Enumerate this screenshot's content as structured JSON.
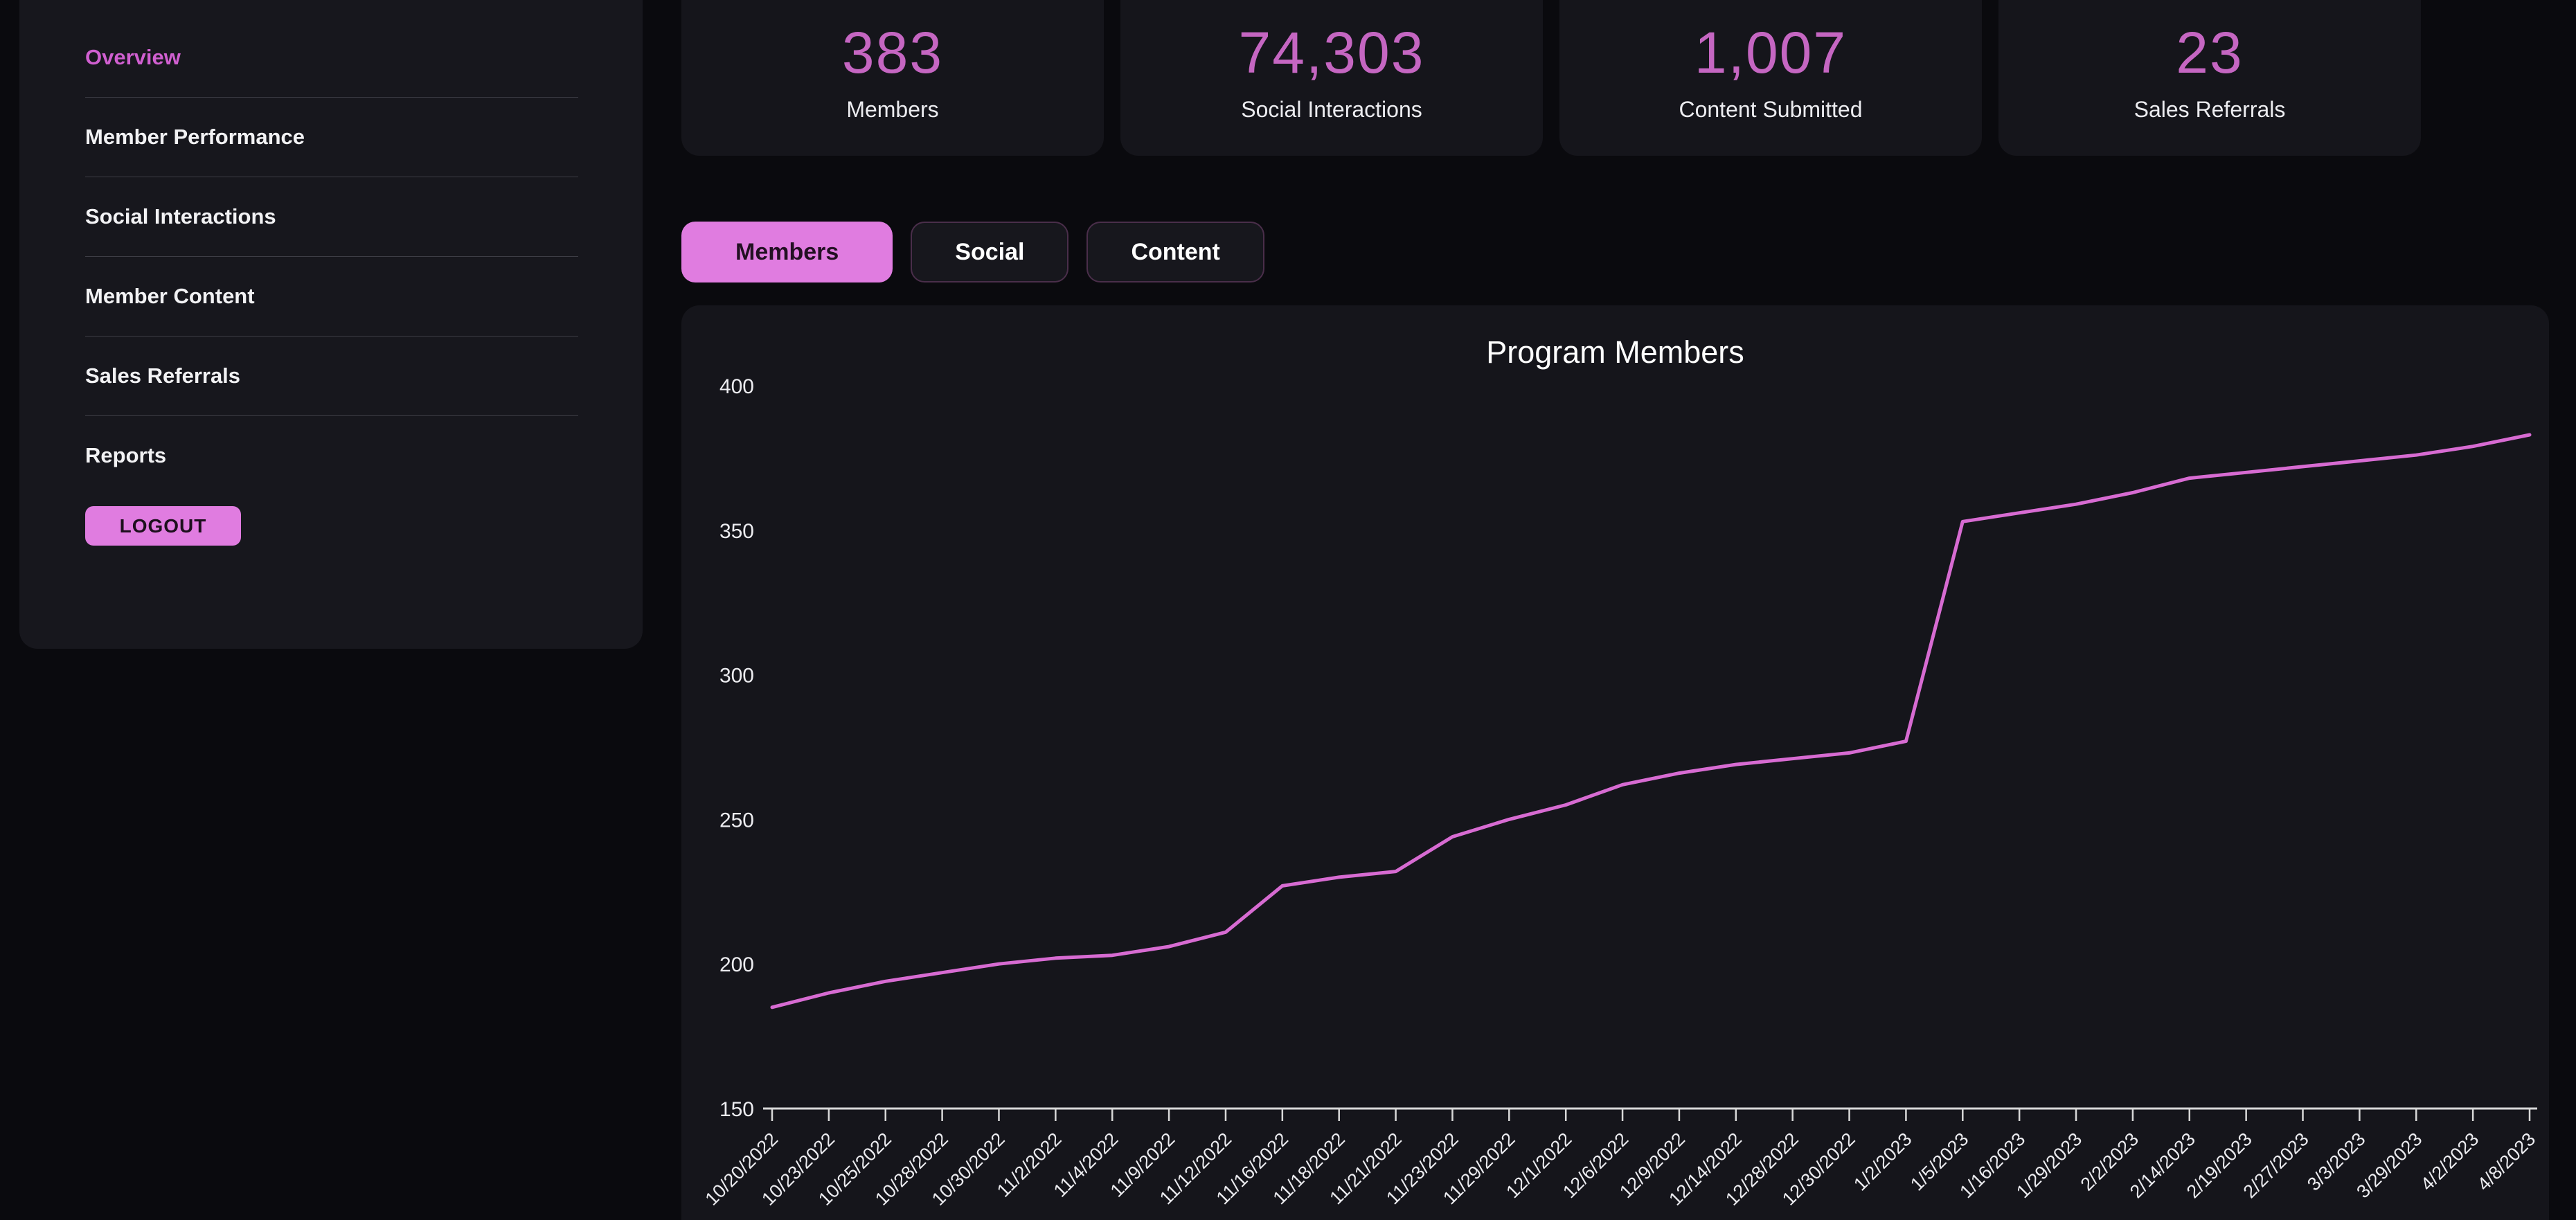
{
  "colors": {
    "background": "#0a0a0e",
    "panel": "#17171d",
    "card": "#15151b",
    "accent_pink": "#e07ce0",
    "stat_number": "#c566c2",
    "line": "#d76bd2",
    "axis": "#d8d8d8"
  },
  "sidebar": {
    "items": [
      {
        "label": "Overview",
        "active": true
      },
      {
        "label": "Member Performance",
        "active": false
      },
      {
        "label": "Social Interactions",
        "active": false
      },
      {
        "label": "Member Content",
        "active": false
      },
      {
        "label": "Sales Referrals",
        "active": false
      },
      {
        "label": "Reports",
        "active": false
      }
    ],
    "logout_label": "LOGOUT"
  },
  "stats": [
    {
      "value": "383",
      "label": "Members"
    },
    {
      "value": "74,303",
      "label": "Social Interactions"
    },
    {
      "value": "1,007",
      "label": "Content Submitted"
    },
    {
      "value": "23",
      "label": "Sales Referrals"
    }
  ],
  "tabs": [
    {
      "label": "Members",
      "active": true
    },
    {
      "label": "Social",
      "active": false
    },
    {
      "label": "Content",
      "active": false
    }
  ],
  "chart_data": {
    "type": "line",
    "title": "Program Members",
    "xlabel": "",
    "ylabel": "",
    "ylim": [
      150,
      400
    ],
    "yticks": [
      150,
      200,
      250,
      300,
      350,
      400
    ],
    "grid": false,
    "legend": "none",
    "line_color": "#d76bd2",
    "x": [
      "10/20/2022",
      "10/23/2022",
      "10/25/2022",
      "10/28/2022",
      "10/30/2022",
      "11/2/2022",
      "11/4/2022",
      "11/9/2022",
      "11/12/2022",
      "11/16/2022",
      "11/18/2022",
      "11/21/2022",
      "11/23/2022",
      "11/29/2022",
      "12/1/2022",
      "12/6/2022",
      "12/9/2022",
      "12/14/2022",
      "12/28/2022",
      "12/30/2022",
      "1/2/2023",
      "1/5/2023",
      "1/16/2023",
      "1/29/2023",
      "2/2/2023",
      "2/14/2023",
      "2/19/2023",
      "2/27/2023",
      "3/3/2023",
      "3/29/2023",
      "4/2/2023",
      "4/8/2023"
    ],
    "series": [
      {
        "name": "Members",
        "values": [
          185,
          190,
          194,
          197,
          200,
          202,
          203,
          206,
          211,
          227,
          230,
          232,
          244,
          250,
          255,
          262,
          266,
          269,
          271,
          273,
          277,
          353,
          356,
          359,
          363,
          368,
          370,
          372,
          374,
          376,
          379,
          383
        ]
      }
    ]
  }
}
